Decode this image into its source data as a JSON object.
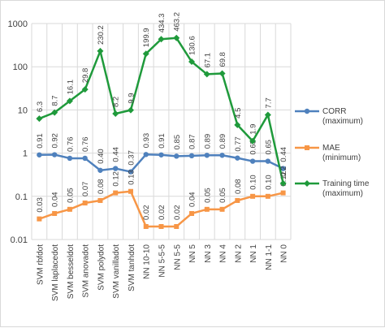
{
  "chart_data": {
    "type": "line",
    "y_scale": "log",
    "ylim": [
      0.01,
      1000
    ],
    "y_ticks": [
      "0.01",
      "0.1",
      "1",
      "10",
      "100",
      "1000"
    ],
    "categories": [
      "SVM rbfdot",
      "SVM laplacedot",
      "SVM besseldot",
      "SVM anovadot",
      "SVM polydot",
      "SVM vanilladot",
      "SVM tanhdot",
      "NN 10-10",
      "NN 5-5-5",
      "NN 5-5",
      "NN 5",
      "NN 3",
      "NN 4",
      "NN 2",
      "NN 1",
      "NN 1-1",
      "NN 0"
    ],
    "grid": "on",
    "legend_position": "right",
    "series": [
      {
        "name": "CORR\n(maximum)",
        "color": "#4f81bd",
        "values": [
          0.91,
          0.92,
          0.76,
          0.76,
          0.4,
          0.44,
          0.37,
          0.93,
          0.91,
          0.85,
          0.87,
          0.89,
          0.89,
          0.77,
          0.65,
          0.65,
          0.44
        ],
        "labels": [
          "0.91",
          "0.92",
          "0.76",
          "0.76",
          "0.40",
          "0.44",
          "0.37",
          "0.93",
          "0.91",
          "0.85",
          "0.87",
          "0.89",
          "0.89",
          "0.77",
          "0.65",
          "0.65",
          "0.44"
        ]
      },
      {
        "name": "MAE\n(minimum)",
        "color": "#f79646",
        "values": [
          0.03,
          0.04,
          0.05,
          0.07,
          0.08,
          0.12,
          0.13,
          0.02,
          0.02,
          0.02,
          0.04,
          0.05,
          0.05,
          0.08,
          0.1,
          0.1,
          0.12
        ],
        "labels": [
          "0.03",
          "0.04",
          "0.05",
          "0.07",
          "0.08",
          "0.12",
          "0.13",
          "0.02",
          "0.02",
          "0.02",
          "0.04",
          "0.05",
          "0.05",
          "0.08",
          "0.10",
          "0.10",
          "0.12"
        ]
      },
      {
        "name": "Training time\n(maximum)",
        "color": "#1f9a3b",
        "values": [
          6.3,
          8.7,
          16.1,
          29.8,
          230.2,
          8.2,
          9.9,
          199.9,
          434.3,
          463.2,
          130.6,
          67.1,
          69.8,
          4.5,
          1.9,
          7.7,
          0.2
        ],
        "labels": [
          "6.3",
          "8.7",
          "16.1",
          "29.8",
          "230.2",
          "8.2",
          "9.9",
          "199.9",
          "434.3",
          "463.2",
          "130.6",
          "67.1",
          "69.8",
          "4.5",
          "1.9",
          "7.7",
          "0.2"
        ]
      }
    ]
  }
}
